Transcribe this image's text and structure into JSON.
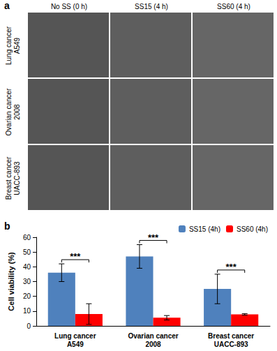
{
  "panels": {
    "a": {
      "label": "a",
      "columns": [
        "No SS (0 h)",
        "SS15 (4 h)",
        "SS60 (4 h)"
      ],
      "rows": [
        [
          "Lung cancer",
          "A549"
        ],
        [
          "Ovarian cancer",
          "2008"
        ],
        [
          "Breast cancer",
          "UACC-893"
        ]
      ]
    },
    "b": {
      "label": "b"
    }
  },
  "chart_data": {
    "type": "bar",
    "y_label": "Cell viability (%)",
    "categories": [
      "Lung cancer\nA549",
      "Ovarian cancer\n2008",
      "Breast cancer\nUACC-893"
    ],
    "series": [
      {
        "name": "SS15 (4h)",
        "color": "#4f81bd",
        "values": [
          36,
          47,
          25
        ],
        "errors": [
          6,
          8,
          10
        ]
      },
      {
        "name": "SS60 (4h)",
        "color": "#ff0000",
        "values": [
          8,
          5.5,
          7.8
        ],
        "errors": [
          7,
          1.5,
          0.5
        ]
      }
    ],
    "annotations": [
      {
        "text": "***",
        "category": "Lung cancer\nA549"
      },
      {
        "text": "***",
        "category": "Ovarian cancer\n2008"
      },
      {
        "text": "***",
        "category": "Breast cancer\nUACC-893"
      }
    ],
    "ylim": [
      0,
      60
    ],
    "yticks": [
      0,
      10,
      20,
      30,
      40,
      50,
      60
    ],
    "grid": false,
    "legend": "top-right"
  }
}
